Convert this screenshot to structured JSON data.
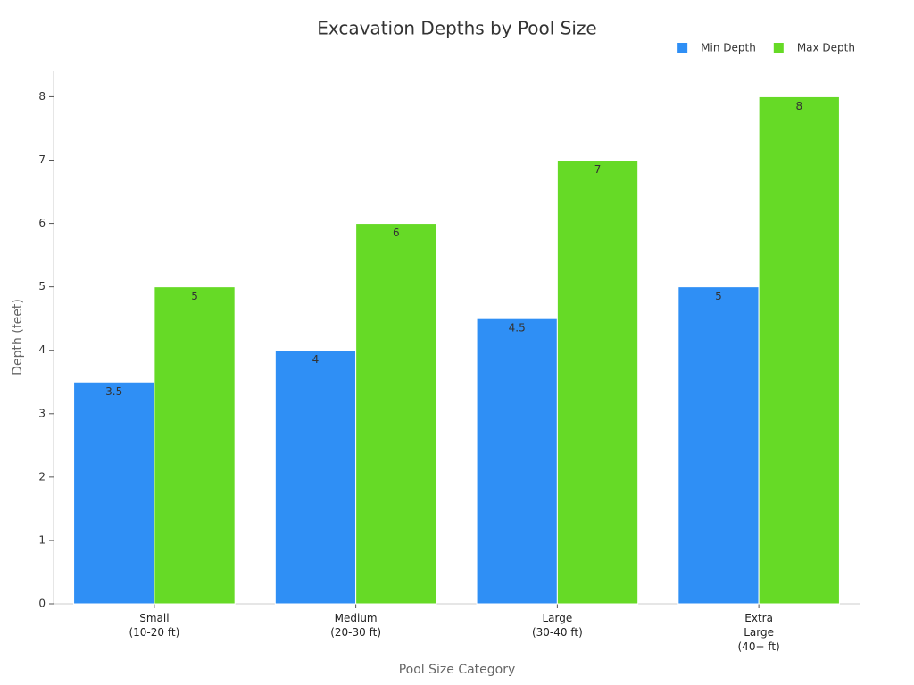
{
  "chart_data": {
    "type": "bar",
    "title": "Excavation Depths by Pool Size",
    "x_label": "Pool Size Category",
    "y_label": "Depth (feet)",
    "categories": [
      "Small\n(10-20 ft)",
      "Medium\n(20-30 ft)",
      "Large\n(30-40 ft)",
      "Extra\nLarge\n(40+ ft)"
    ],
    "series": [
      {
        "name": "Min Depth",
        "color": "#2f8ff5",
        "values": [
          3.5,
          4,
          4.5,
          5
        ]
      },
      {
        "name": "Max Depth",
        "color": "#66da26",
        "values": [
          5,
          6,
          7,
          8
        ]
      }
    ],
    "ylim": [
      0,
      8.4
    ],
    "yticks": [
      0,
      1,
      2,
      3,
      4,
      5,
      6,
      7,
      8
    ],
    "grid": false,
    "legend": "upper right"
  }
}
